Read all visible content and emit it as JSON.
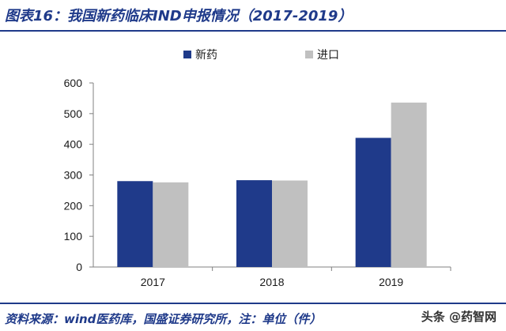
{
  "header": {
    "title": "图表16：我国新药临床IND申报情况（2017-2019）"
  },
  "footer": {
    "source": "资料来源：wind医药库，国盛证券研究所，注：单位（件）",
    "watermark": "头条 @药智网"
  },
  "colors": {
    "series_new": "#1f3a8a",
    "series_import": "#c0c0c0",
    "brand": "#1f3a8a"
  },
  "chart_data": {
    "type": "bar",
    "title": "",
    "xlabel": "",
    "ylabel": "",
    "categories": [
      "2017",
      "2018",
      "2019"
    ],
    "series": [
      {
        "name": "新药",
        "values": [
          280,
          283,
          421
        ]
      },
      {
        "name": "进口",
        "values": [
          276,
          282,
          536
        ]
      }
    ],
    "ylim": [
      0,
      600
    ],
    "yticks": [
      0,
      100,
      200,
      300,
      400,
      500,
      600
    ],
    "legend_position": "top-center",
    "grid": false
  }
}
